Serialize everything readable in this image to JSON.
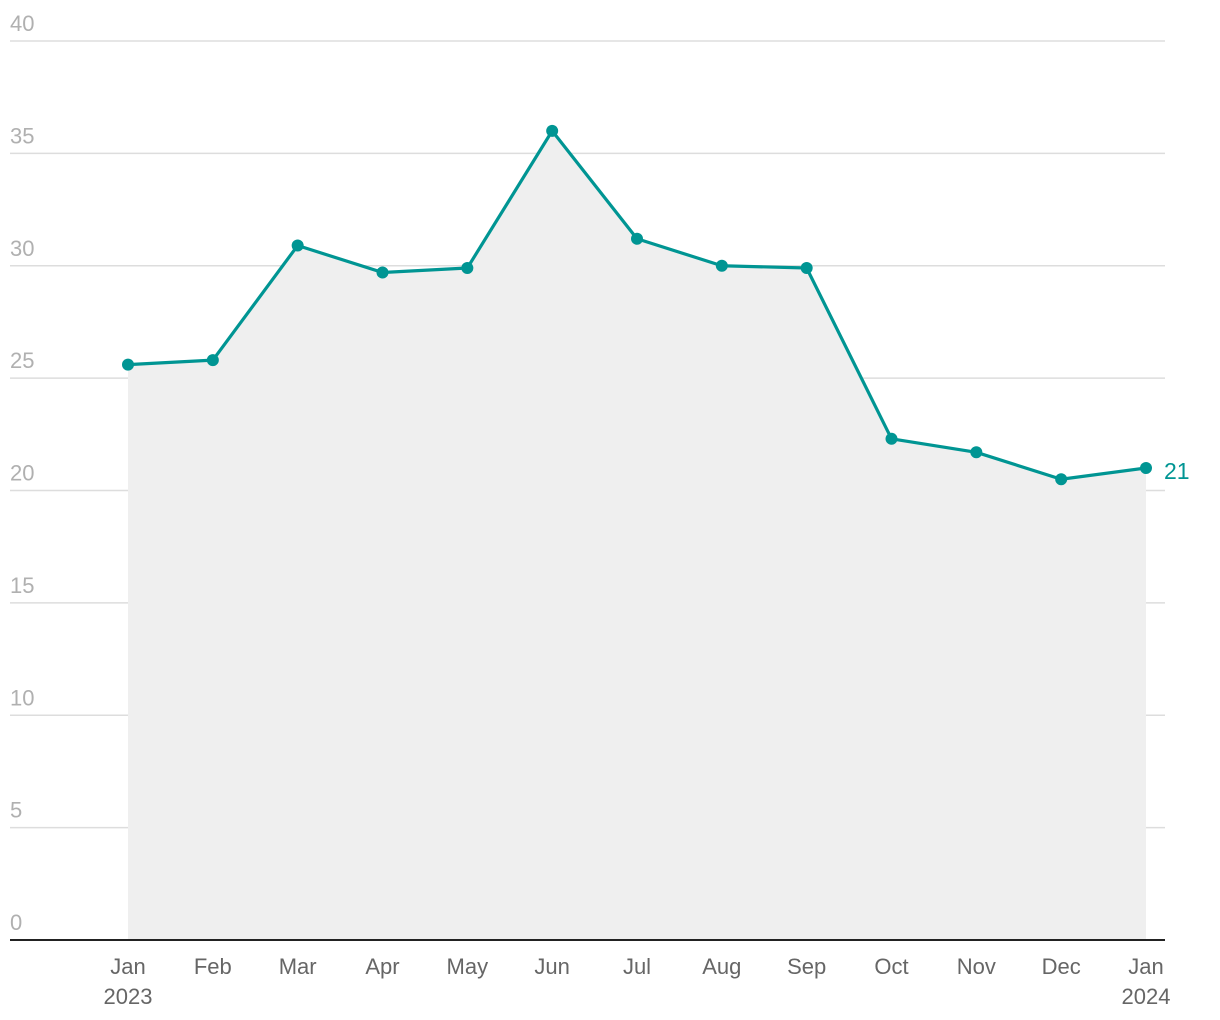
{
  "colors": {
    "line": "#009593",
    "area": "#efefef"
  },
  "chart_data": {
    "type": "area",
    "title": "",
    "xlabel": "",
    "ylabel": "",
    "x": [
      "Jan 2023",
      "Feb 2023",
      "Mar 2023",
      "Apr 2023",
      "May 2023",
      "Jun 2023",
      "Jul 2023",
      "Aug 2023",
      "Sep 2023",
      "Oct 2023",
      "Nov 2023",
      "Dec 2023",
      "Jan 2024"
    ],
    "x_tick_labels": [
      {
        "label": "Jan",
        "sub": "2023"
      },
      {
        "label": "Feb",
        "sub": ""
      },
      {
        "label": "Mar",
        "sub": ""
      },
      {
        "label": "Apr",
        "sub": ""
      },
      {
        "label": "May",
        "sub": ""
      },
      {
        "label": "Jun",
        "sub": ""
      },
      {
        "label": "Jul",
        "sub": ""
      },
      {
        "label": "Aug",
        "sub": ""
      },
      {
        "label": "Sep",
        "sub": ""
      },
      {
        "label": "Oct",
        "sub": ""
      },
      {
        "label": "Nov",
        "sub": ""
      },
      {
        "label": "Dec",
        "sub": ""
      },
      {
        "label": "Jan",
        "sub": "2024"
      }
    ],
    "values": [
      25.6,
      25.8,
      30.9,
      29.7,
      29.9,
      36.0,
      31.2,
      30.0,
      29.9,
      22.3,
      21.7,
      20.5,
      21.0
    ],
    "y_ticks": [
      0,
      5,
      10,
      15,
      20,
      25,
      30,
      35,
      40
    ],
    "ylim": [
      0,
      40
    ],
    "grid": true,
    "legend": "none",
    "end_label": "21"
  }
}
